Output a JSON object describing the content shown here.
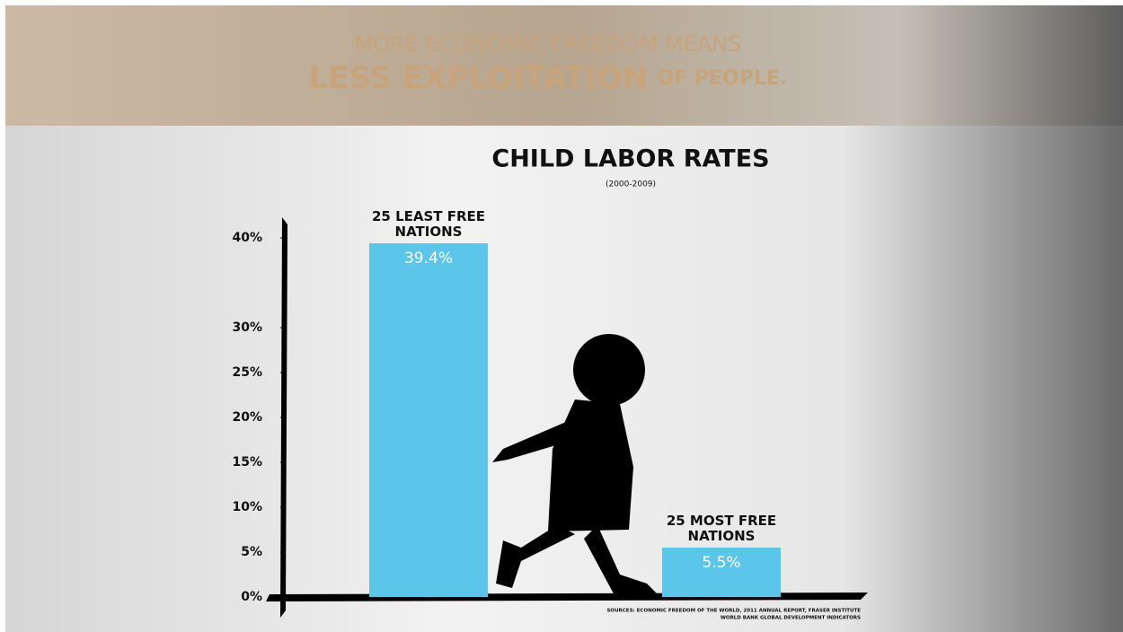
{
  "chart_data": {
    "type": "bar",
    "headline": [
      "MORE ECONOMIC FREEDOM MEANS",
      "LESS EXPLOITATION",
      "OF PEOPLE."
    ],
    "title": "CHILD LABOR RATES",
    "subtitle": "(2000-2009)",
    "categories": [
      "25 LEAST FREE NATIONS",
      "25 MOST FREE NATIONS"
    ],
    "values": [
      39.4,
      5.5
    ],
    "value_labels": [
      "39.4%",
      "5.5%"
    ],
    "color": "#5bc5ea",
    "ylim": [
      0,
      40
    ],
    "yticks": [
      {
        "value": 0,
        "label": "0%"
      },
      {
        "value": 5,
        "label": "5%"
      },
      {
        "value": 10,
        "label": "10%"
      },
      {
        "value": 15,
        "label": "15%"
      },
      {
        "value": 20,
        "label": "20%"
      },
      {
        "value": 25,
        "label": "25%"
      },
      {
        "value": 30,
        "label": "30%"
      },
      {
        "value": 40,
        "label": "40%"
      }
    ],
    "sources": [
      "SOURCES: ECONOMIC FREEDOM OF THE WORLD, 2011 ANNUAL REPORT, FRASER INSTITUTE",
      "WORLD BANK GLOBAL DEVELOPMENT INDICATORS"
    ]
  }
}
